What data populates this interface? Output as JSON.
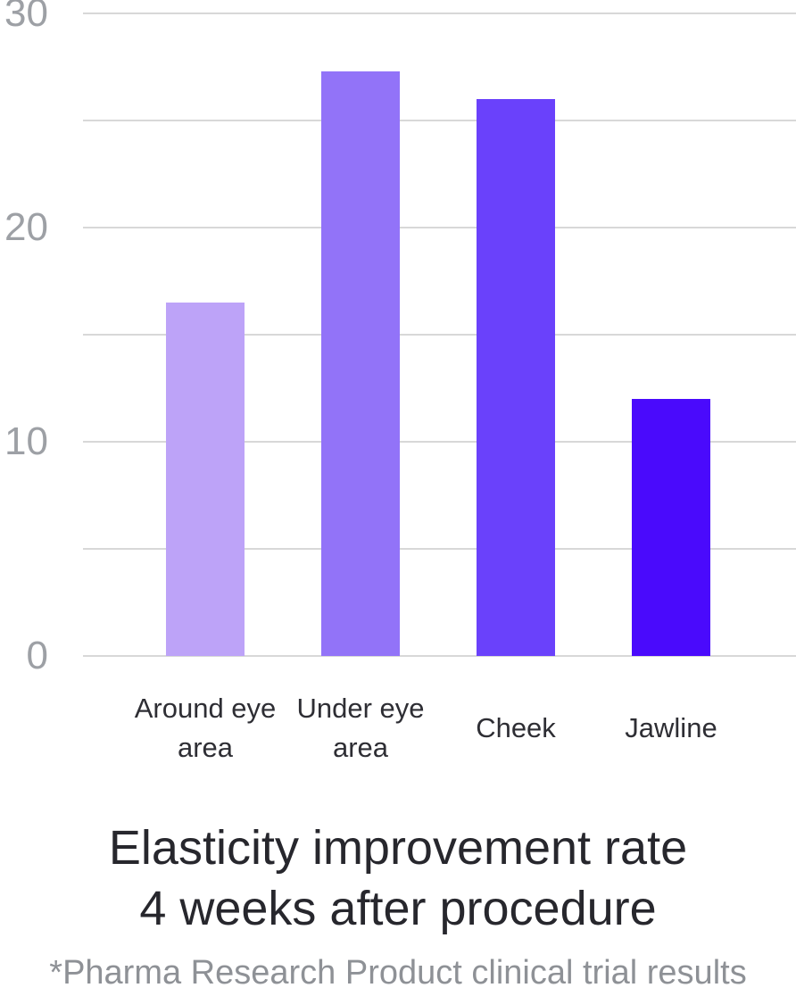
{
  "chart_data": {
    "type": "bar",
    "title": "Elasticity improvement rate 4 weeks after procedure",
    "title_lines": [
      "Elasticity improvement rate",
      "4 weeks after procedure"
    ],
    "footnote": "*Pharma Research Product clinical trial results",
    "categories": [
      "Around eye area",
      "Under eye area",
      "Cheek",
      "Jawline"
    ],
    "values": [
      16.5,
      27.3,
      26,
      12
    ],
    "bar_colors": [
      "#bda3f8",
      "#9273f8",
      "#6a41fb",
      "#4a0afc"
    ],
    "xlabel": "",
    "ylabel": "",
    "ylim": [
      0,
      30
    ],
    "gridline_values": [
      0,
      5,
      10,
      15,
      20,
      25,
      30
    ],
    "ytick_labels": [
      {
        "value": 30,
        "label": "30"
      },
      {
        "value": 20,
        "label": "20"
      },
      {
        "value": 10,
        "label": "10"
      },
      {
        "value": 0,
        "label": "0"
      }
    ],
    "grid": true,
    "legend": false
  },
  "colors": {
    "background": "#ffffff",
    "gridline": "#d8d8d8",
    "ytick_text": "#9da0a5",
    "category_text": "#2e2e34",
    "title_text": "#27272d",
    "footnote_text": "#8e9196"
  }
}
